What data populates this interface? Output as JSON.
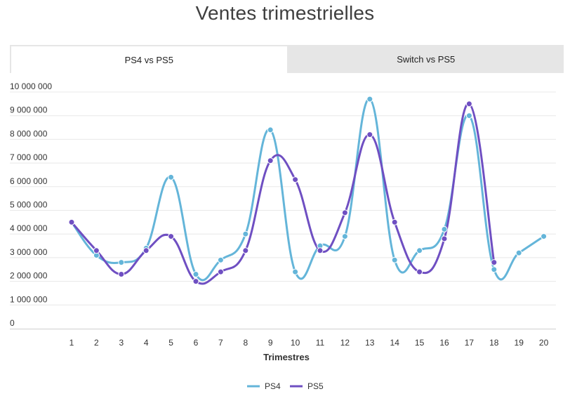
{
  "title": "Ventes trimestrielles",
  "tabs": [
    {
      "label": "PS4 vs PS5",
      "active": true
    },
    {
      "label": "Switch vs PS5",
      "active": false
    }
  ],
  "colors": {
    "PS4": "#64b5d9",
    "PS5": "#6f4fc2",
    "grid": "#e8e8e8"
  },
  "chart_data": {
    "type": "line",
    "xlabel": "Trimestres",
    "ylabel": "",
    "x": [
      1,
      2,
      3,
      4,
      5,
      6,
      7,
      8,
      9,
      10,
      11,
      12,
      13,
      14,
      15,
      16,
      17,
      18,
      19,
      20
    ],
    "ylim": [
      0,
      10000000
    ],
    "yticks": [
      0,
      1000000,
      2000000,
      3000000,
      4000000,
      5000000,
      6000000,
      7000000,
      8000000,
      9000000,
      10000000
    ],
    "ytick_labels": [
      "0",
      "1 000 000",
      "2 000 000",
      "3 000 000",
      "4 000 000",
      "5 000 000",
      "6 000 000",
      "7 000 000",
      "8 000 000",
      "9 000 000",
      "10 000 000"
    ],
    "legend_position": "bottom",
    "series": [
      {
        "name": "PS4",
        "values": [
          4500000,
          3100000,
          2800000,
          3400000,
          6400000,
          2300000,
          2900000,
          4000000,
          8400000,
          2400000,
          3500000,
          3900000,
          9700000,
          2900000,
          3300000,
          4200000,
          9000000,
          2500000,
          3200000,
          3900000
        ]
      },
      {
        "name": "PS5",
        "values": [
          4500000,
          3300000,
          2300000,
          3300000,
          3900000,
          2000000,
          2400000,
          3300000,
          7100000,
          6300000,
          3300000,
          4900000,
          8200000,
          4500000,
          2400000,
          3800000,
          9500000,
          2800000,
          null,
          null
        ]
      }
    ]
  }
}
